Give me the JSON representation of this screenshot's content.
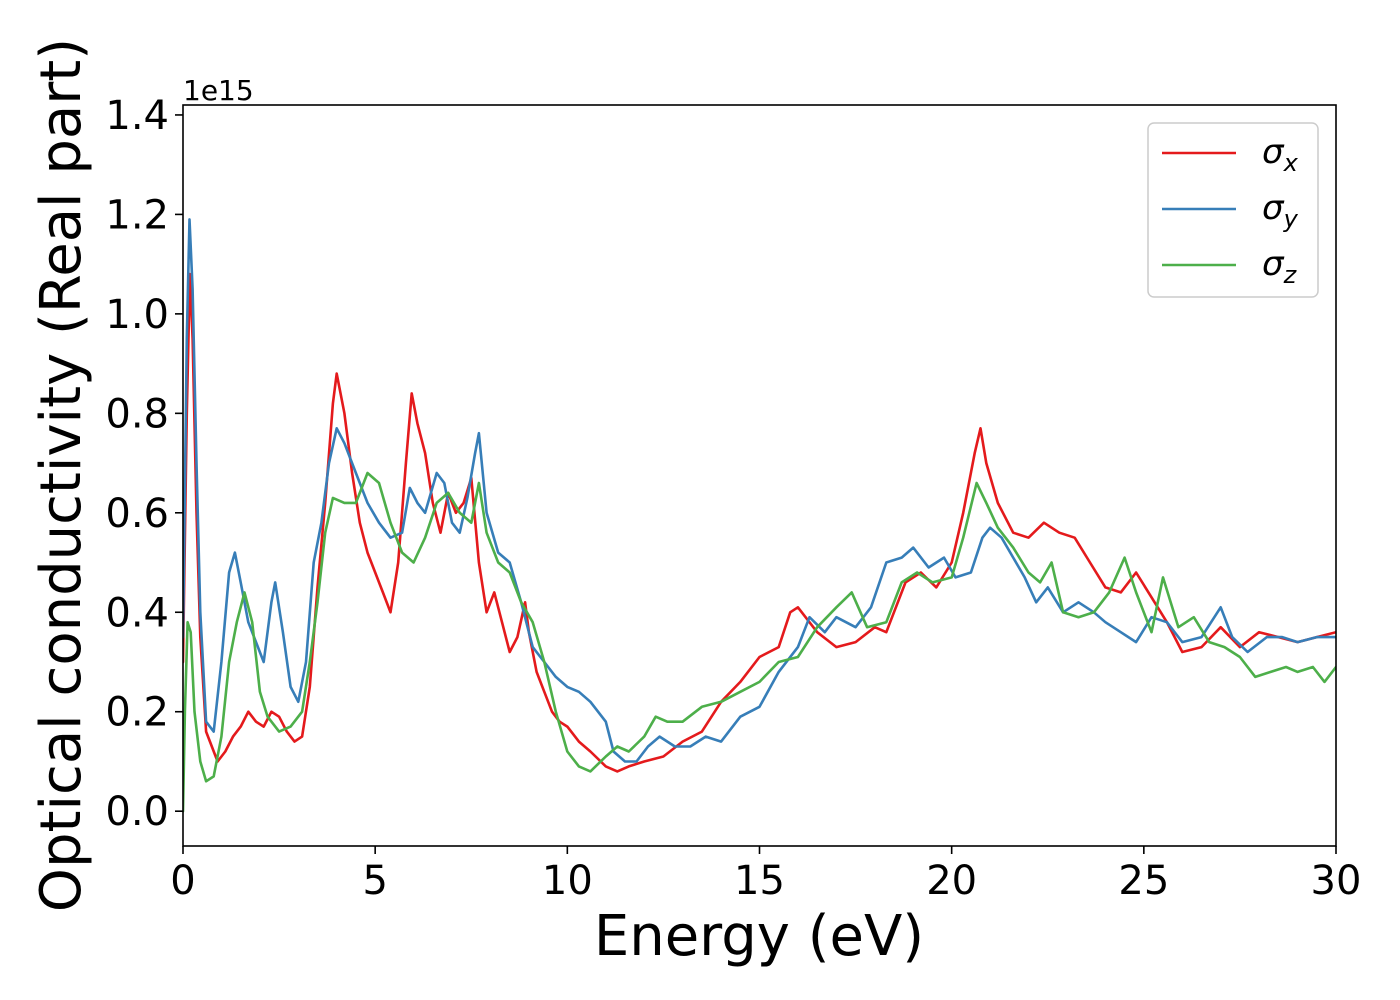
{
  "chart_data": {
    "type": "line",
    "xlabel": "Energy (eV)",
    "ylabel": "Optical conductivity (Real part)",
    "y_offset_text": "1e15",
    "xlim": [
      0,
      30
    ],
    "ylim": [
      -0.07,
      1.42
    ],
    "x_ticks": [
      0,
      5,
      10,
      15,
      20,
      25,
      30
    ],
    "x_tick_labels": [
      "0",
      "5",
      "10",
      "15",
      "20",
      "25",
      "30"
    ],
    "y_ticks": [
      0.0,
      0.2,
      0.4,
      0.6,
      0.8,
      1.0,
      1.2,
      1.4
    ],
    "y_tick_labels": [
      "0.0",
      "0.2",
      "0.4",
      "0.6",
      "0.8",
      "1.0",
      "1.2",
      "1.4"
    ],
    "grid": false,
    "legend_position": "top-right",
    "series": [
      {
        "name": "σx",
        "symbol": "σ",
        "subscript": "x",
        "color": "#e41a1c",
        "points": [
          [
            0,
            0.3
          ],
          [
            0.1,
            0.8
          ],
          [
            0.18,
            1.08
          ],
          [
            0.25,
            0.95
          ],
          [
            0.35,
            0.6
          ],
          [
            0.45,
            0.35
          ],
          [
            0.6,
            0.16
          ],
          [
            0.9,
            0.1
          ],
          [
            1.1,
            0.12
          ],
          [
            1.3,
            0.15
          ],
          [
            1.5,
            0.17
          ],
          [
            1.7,
            0.2
          ],
          [
            1.9,
            0.18
          ],
          [
            2.1,
            0.17
          ],
          [
            2.3,
            0.2
          ],
          [
            2.5,
            0.19
          ],
          [
            2.7,
            0.16
          ],
          [
            2.9,
            0.14
          ],
          [
            3.1,
            0.15
          ],
          [
            3.3,
            0.25
          ],
          [
            3.5,
            0.45
          ],
          [
            3.7,
            0.62
          ],
          [
            3.9,
            0.82
          ],
          [
            4.0,
            0.88
          ],
          [
            4.2,
            0.8
          ],
          [
            4.4,
            0.68
          ],
          [
            4.6,
            0.58
          ],
          [
            4.8,
            0.52
          ],
          [
            5.0,
            0.48
          ],
          [
            5.2,
            0.44
          ],
          [
            5.4,
            0.4
          ],
          [
            5.6,
            0.5
          ],
          [
            5.8,
            0.7
          ],
          [
            5.95,
            0.84
          ],
          [
            6.1,
            0.78
          ],
          [
            6.3,
            0.72
          ],
          [
            6.5,
            0.62
          ],
          [
            6.7,
            0.56
          ],
          [
            6.9,
            0.64
          ],
          [
            7.1,
            0.6
          ],
          [
            7.3,
            0.62
          ],
          [
            7.5,
            0.67
          ],
          [
            7.7,
            0.5
          ],
          [
            7.9,
            0.4
          ],
          [
            8.1,
            0.44
          ],
          [
            8.3,
            0.38
          ],
          [
            8.5,
            0.32
          ],
          [
            8.7,
            0.35
          ],
          [
            8.9,
            0.42
          ],
          [
            9.0,
            0.36
          ],
          [
            9.2,
            0.28
          ],
          [
            9.4,
            0.24
          ],
          [
            9.6,
            0.2
          ],
          [
            9.8,
            0.18
          ],
          [
            10.0,
            0.17
          ],
          [
            10.3,
            0.14
          ],
          [
            10.6,
            0.12
          ],
          [
            11.0,
            0.09
          ],
          [
            11.3,
            0.08
          ],
          [
            11.6,
            0.09
          ],
          [
            12.0,
            0.1
          ],
          [
            12.5,
            0.11
          ],
          [
            13.0,
            0.14
          ],
          [
            13.5,
            0.16
          ],
          [
            14.0,
            0.22
          ],
          [
            14.5,
            0.26
          ],
          [
            15.0,
            0.31
          ],
          [
            15.5,
            0.33
          ],
          [
            15.8,
            0.4
          ],
          [
            16.0,
            0.41
          ],
          [
            16.5,
            0.36
          ],
          [
            17.0,
            0.33
          ],
          [
            17.5,
            0.34
          ],
          [
            18.0,
            0.37
          ],
          [
            18.3,
            0.36
          ],
          [
            18.8,
            0.46
          ],
          [
            19.2,
            0.48
          ],
          [
            19.6,
            0.45
          ],
          [
            20.0,
            0.5
          ],
          [
            20.3,
            0.6
          ],
          [
            20.6,
            0.72
          ],
          [
            20.75,
            0.77
          ],
          [
            20.9,
            0.7
          ],
          [
            21.2,
            0.62
          ],
          [
            21.6,
            0.56
          ],
          [
            22.0,
            0.55
          ],
          [
            22.4,
            0.58
          ],
          [
            22.8,
            0.56
          ],
          [
            23.2,
            0.55
          ],
          [
            23.6,
            0.5
          ],
          [
            24.0,
            0.45
          ],
          [
            24.4,
            0.44
          ],
          [
            24.8,
            0.48
          ],
          [
            25.2,
            0.43
          ],
          [
            25.6,
            0.38
          ],
          [
            26.0,
            0.32
          ],
          [
            26.5,
            0.33
          ],
          [
            27.0,
            0.37
          ],
          [
            27.5,
            0.33
          ],
          [
            28.0,
            0.36
          ],
          [
            28.5,
            0.35
          ],
          [
            29.0,
            0.34
          ],
          [
            29.5,
            0.35
          ],
          [
            30.0,
            0.36
          ]
        ]
      },
      {
        "name": "σy",
        "symbol": "σ",
        "subscript": "y",
        "color": "#377eb8",
        "points": [
          [
            0,
            0.35
          ],
          [
            0.1,
            0.95
          ],
          [
            0.17,
            1.19
          ],
          [
            0.25,
            1.05
          ],
          [
            0.35,
            0.7
          ],
          [
            0.45,
            0.4
          ],
          [
            0.6,
            0.18
          ],
          [
            0.8,
            0.16
          ],
          [
            1.0,
            0.3
          ],
          [
            1.2,
            0.48
          ],
          [
            1.35,
            0.52
          ],
          [
            1.5,
            0.46
          ],
          [
            1.7,
            0.38
          ],
          [
            1.9,
            0.34
          ],
          [
            2.1,
            0.3
          ],
          [
            2.3,
            0.42
          ],
          [
            2.4,
            0.46
          ],
          [
            2.6,
            0.36
          ],
          [
            2.8,
            0.25
          ],
          [
            3.0,
            0.22
          ],
          [
            3.2,
            0.3
          ],
          [
            3.4,
            0.5
          ],
          [
            3.6,
            0.58
          ],
          [
            3.8,
            0.7
          ],
          [
            4.0,
            0.77
          ],
          [
            4.2,
            0.74
          ],
          [
            4.5,
            0.68
          ],
          [
            4.8,
            0.62
          ],
          [
            5.1,
            0.58
          ],
          [
            5.4,
            0.55
          ],
          [
            5.7,
            0.56
          ],
          [
            5.9,
            0.65
          ],
          [
            6.1,
            0.62
          ],
          [
            6.3,
            0.6
          ],
          [
            6.6,
            0.68
          ],
          [
            6.8,
            0.66
          ],
          [
            7.0,
            0.58
          ],
          [
            7.2,
            0.56
          ],
          [
            7.4,
            0.63
          ],
          [
            7.6,
            0.72
          ],
          [
            7.7,
            0.76
          ],
          [
            7.9,
            0.6
          ],
          [
            8.2,
            0.52
          ],
          [
            8.5,
            0.5
          ],
          [
            8.8,
            0.42
          ],
          [
            9.1,
            0.33
          ],
          [
            9.4,
            0.3
          ],
          [
            9.7,
            0.27
          ],
          [
            10.0,
            0.25
          ],
          [
            10.3,
            0.24
          ],
          [
            10.6,
            0.22
          ],
          [
            11.0,
            0.18
          ],
          [
            11.2,
            0.12
          ],
          [
            11.5,
            0.1
          ],
          [
            11.8,
            0.1
          ],
          [
            12.1,
            0.13
          ],
          [
            12.4,
            0.15
          ],
          [
            12.8,
            0.13
          ],
          [
            13.2,
            0.13
          ],
          [
            13.6,
            0.15
          ],
          [
            14.0,
            0.14
          ],
          [
            14.5,
            0.19
          ],
          [
            15.0,
            0.21
          ],
          [
            15.5,
            0.28
          ],
          [
            16.0,
            0.33
          ],
          [
            16.3,
            0.39
          ],
          [
            16.7,
            0.36
          ],
          [
            17.0,
            0.39
          ],
          [
            17.5,
            0.37
          ],
          [
            17.9,
            0.41
          ],
          [
            18.3,
            0.5
          ],
          [
            18.7,
            0.51
          ],
          [
            19.0,
            0.53
          ],
          [
            19.4,
            0.49
          ],
          [
            19.8,
            0.51
          ],
          [
            20.1,
            0.47
          ],
          [
            20.5,
            0.48
          ],
          [
            20.8,
            0.55
          ],
          [
            21.0,
            0.57
          ],
          [
            21.3,
            0.55
          ],
          [
            21.6,
            0.51
          ],
          [
            21.9,
            0.47
          ],
          [
            22.2,
            0.42
          ],
          [
            22.5,
            0.45
          ],
          [
            22.9,
            0.4
          ],
          [
            23.3,
            0.42
          ],
          [
            23.7,
            0.4
          ],
          [
            24.0,
            0.38
          ],
          [
            24.4,
            0.36
          ],
          [
            24.8,
            0.34
          ],
          [
            25.2,
            0.39
          ],
          [
            25.6,
            0.38
          ],
          [
            26.0,
            0.34
          ],
          [
            26.5,
            0.35
          ],
          [
            27.0,
            0.41
          ],
          [
            27.3,
            0.35
          ],
          [
            27.7,
            0.32
          ],
          [
            28.2,
            0.35
          ],
          [
            28.6,
            0.35
          ],
          [
            29.0,
            0.34
          ],
          [
            29.5,
            0.35
          ],
          [
            30.0,
            0.35
          ]
        ]
      },
      {
        "name": "σz",
        "symbol": "σ",
        "subscript": "z",
        "color": "#4daf4a",
        "points": [
          [
            0,
            0.0
          ],
          [
            0.05,
            0.2
          ],
          [
            0.12,
            0.38
          ],
          [
            0.2,
            0.36
          ],
          [
            0.3,
            0.2
          ],
          [
            0.45,
            0.1
          ],
          [
            0.6,
            0.06
          ],
          [
            0.8,
            0.07
          ],
          [
            1.0,
            0.15
          ],
          [
            1.2,
            0.3
          ],
          [
            1.4,
            0.38
          ],
          [
            1.6,
            0.44
          ],
          [
            1.8,
            0.38
          ],
          [
            2.0,
            0.24
          ],
          [
            2.2,
            0.19
          ],
          [
            2.5,
            0.16
          ],
          [
            2.8,
            0.17
          ],
          [
            3.1,
            0.2
          ],
          [
            3.3,
            0.3
          ],
          [
            3.5,
            0.42
          ],
          [
            3.7,
            0.56
          ],
          [
            3.9,
            0.63
          ],
          [
            4.2,
            0.62
          ],
          [
            4.5,
            0.62
          ],
          [
            4.8,
            0.68
          ],
          [
            5.1,
            0.66
          ],
          [
            5.4,
            0.58
          ],
          [
            5.7,
            0.52
          ],
          [
            6.0,
            0.5
          ],
          [
            6.3,
            0.55
          ],
          [
            6.6,
            0.62
          ],
          [
            6.9,
            0.64
          ],
          [
            7.2,
            0.6
          ],
          [
            7.5,
            0.58
          ],
          [
            7.7,
            0.66
          ],
          [
            7.9,
            0.56
          ],
          [
            8.2,
            0.5
          ],
          [
            8.5,
            0.48
          ],
          [
            8.8,
            0.42
          ],
          [
            9.1,
            0.38
          ],
          [
            9.4,
            0.3
          ],
          [
            9.7,
            0.2
          ],
          [
            10.0,
            0.12
          ],
          [
            10.3,
            0.09
          ],
          [
            10.6,
            0.08
          ],
          [
            11.0,
            0.11
          ],
          [
            11.3,
            0.13
          ],
          [
            11.6,
            0.12
          ],
          [
            12.0,
            0.15
          ],
          [
            12.3,
            0.19
          ],
          [
            12.6,
            0.18
          ],
          [
            13.0,
            0.18
          ],
          [
            13.5,
            0.21
          ],
          [
            14.0,
            0.22
          ],
          [
            14.5,
            0.24
          ],
          [
            15.0,
            0.26
          ],
          [
            15.5,
            0.3
          ],
          [
            16.0,
            0.31
          ],
          [
            16.5,
            0.37
          ],
          [
            17.0,
            0.41
          ],
          [
            17.4,
            0.44
          ],
          [
            17.8,
            0.37
          ],
          [
            18.3,
            0.38
          ],
          [
            18.7,
            0.46
          ],
          [
            19.1,
            0.48
          ],
          [
            19.5,
            0.46
          ],
          [
            20.0,
            0.47
          ],
          [
            20.3,
            0.55
          ],
          [
            20.65,
            0.66
          ],
          [
            20.9,
            0.62
          ],
          [
            21.2,
            0.57
          ],
          [
            21.6,
            0.53
          ],
          [
            22.0,
            0.48
          ],
          [
            22.3,
            0.46
          ],
          [
            22.6,
            0.5
          ],
          [
            22.9,
            0.4
          ],
          [
            23.3,
            0.39
          ],
          [
            23.7,
            0.4
          ],
          [
            24.1,
            0.44
          ],
          [
            24.5,
            0.51
          ],
          [
            24.8,
            0.44
          ],
          [
            25.2,
            0.36
          ],
          [
            25.5,
            0.47
          ],
          [
            25.9,
            0.37
          ],
          [
            26.3,
            0.39
          ],
          [
            26.7,
            0.34
          ],
          [
            27.1,
            0.33
          ],
          [
            27.5,
            0.31
          ],
          [
            27.9,
            0.27
          ],
          [
            28.3,
            0.28
          ],
          [
            28.7,
            0.29
          ],
          [
            29.0,
            0.28
          ],
          [
            29.4,
            0.29
          ],
          [
            29.7,
            0.26
          ],
          [
            30.0,
            0.29
          ]
        ]
      }
    ]
  }
}
